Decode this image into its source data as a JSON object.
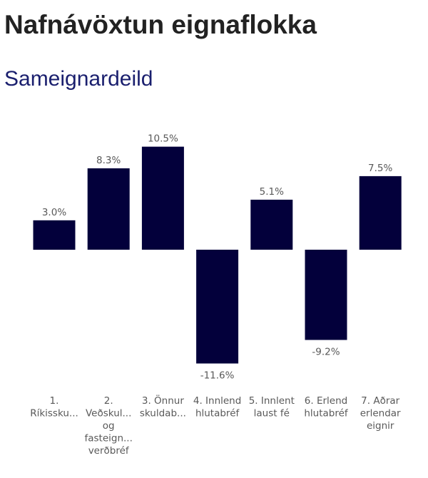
{
  "page_title": "Nafnávöxtun eignaflokka",
  "section_title": "Sameignardeild",
  "colors": {
    "bar": "#03003b",
    "section_title": "#1a1f6e",
    "label": "#595959"
  },
  "chart_data": {
    "type": "bar",
    "categories": [
      [
        "1.",
        "Ríkissku..."
      ],
      [
        "2.",
        "Veðskul...",
        "og",
        "fasteign...",
        "verðbréf"
      ],
      [
        "3. Önnur",
        "skuldab..."
      ],
      [
        "4. Innlend",
        "hlutabréf"
      ],
      [
        "5. Innlent",
        "laust fé"
      ],
      [
        "6. Erlend",
        "hlutabréf"
      ],
      [
        "7. Aðrar",
        "erlendar",
        "eignir"
      ]
    ],
    "values": [
      3.0,
      8.3,
      10.5,
      -11.6,
      5.1,
      -9.2,
      7.5
    ],
    "value_labels": [
      "3.0%",
      "8.3%",
      "10.5%",
      "-11.6%",
      "5.1%",
      "-9.2%",
      "7.5%"
    ],
    "unit": "%",
    "grid": false,
    "legend": "none"
  }
}
